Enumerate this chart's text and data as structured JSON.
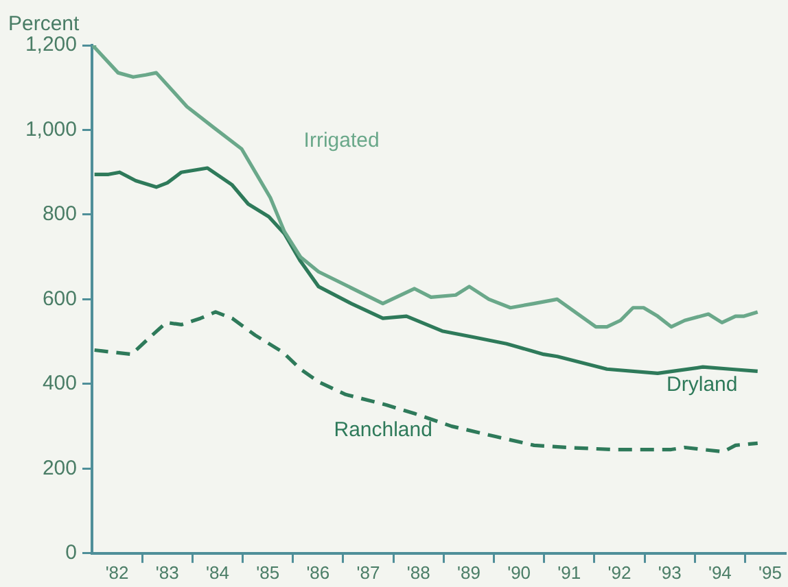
{
  "chart_data": {
    "type": "line",
    "ylabel": "Percent",
    "xlim": [
      1981.5,
      1995.3
    ],
    "xticks": [
      {
        "value": 1982,
        "label": "'82"
      },
      {
        "value": 1982.5,
        "label": null
      },
      {
        "value": 1983,
        "label": "'83"
      },
      {
        "value": 1983.5,
        "label": null
      },
      {
        "value": 1984,
        "label": "'84"
      },
      {
        "value": 1984.5,
        "label": null
      },
      {
        "value": 1985,
        "label": "'85"
      },
      {
        "value": 1985.5,
        "label": null
      },
      {
        "value": 1986,
        "label": "'86"
      },
      {
        "value": 1986.5,
        "label": null
      },
      {
        "value": 1987,
        "label": "'87"
      },
      {
        "value": 1987.5,
        "label": null
      },
      {
        "value": 1988,
        "label": "'88"
      },
      {
        "value": 1988.5,
        "label": null
      },
      {
        "value": 1989,
        "label": "'89"
      },
      {
        "value": 1989.5,
        "label": null
      },
      {
        "value": 1990,
        "label": "'90"
      },
      {
        "value": 1990.5,
        "label": null
      },
      {
        "value": 1991,
        "label": "'91"
      },
      {
        "value": 1991.5,
        "label": null
      },
      {
        "value": 1992,
        "label": "'92"
      },
      {
        "value": 1992.5,
        "label": null
      },
      {
        "value": 1993,
        "label": "'93"
      },
      {
        "value": 1993.5,
        "label": null
      },
      {
        "value": 1994,
        "label": "'94"
      },
      {
        "value": 1994.5,
        "label": null
      },
      {
        "value": 1995,
        "label": "'95"
      }
    ],
    "ylim": [
      0,
      1200
    ],
    "yticks": [
      0,
      200,
      400,
      600,
      800,
      {
        "value": 1000,
        "label": "1,000"
      },
      {
        "value": 1200,
        "label": "1,200"
      }
    ],
    "grid": false,
    "legend": false,
    "marker": "none",
    "series": [
      {
        "name": "Irrigated",
        "color": "#6aa88a",
        "line_style": "solid",
        "x": [
          1981.53,
          1981.55,
          1982.02,
          1982.32,
          1982.57,
          1982.78,
          1983.39,
          1983.93,
          1984.48,
          1985.05,
          1985.33,
          1985.65,
          1986.01,
          1987.29,
          1987.92,
          1988.25,
          1988.74,
          1989.01,
          1989.4,
          1989.83,
          1990.3,
          1990.76,
          1991.53,
          1991.75,
          1992.02,
          1992.27,
          1992.48,
          1992.76,
          1993.03,
          1993.3,
          1993.77,
          1994.04,
          1994.31,
          1994.48,
          1994.75
        ],
        "values": [
          1200,
          1195,
          1135,
          1125,
          1130,
          1135,
          1055,
          1005,
          955,
          840,
          760,
          700,
          665,
          590,
          625,
          605,
          610,
          630,
          600,
          580,
          590,
          600,
          535,
          535,
          550,
          580,
          580,
          560,
          535,
          550,
          565,
          545,
          560,
          560,
          570
        ]
      },
      {
        "name": "Dryland",
        "color": "#2e7a5a",
        "line_style": "solid",
        "x": [
          1981.55,
          1981.83,
          1982.05,
          1982.37,
          1982.78,
          1983.0,
          1983.28,
          1983.8,
          1984.29,
          1984.61,
          1985.02,
          1985.33,
          1985.65,
          1986.01,
          1986.66,
          1987.29,
          1987.76,
          1988.47,
          1989.12,
          1989.75,
          1990.49,
          1990.76,
          1991.75,
          1992.76,
          1993.66,
          1994.2,
          1994.75
        ],
        "values": [
          895,
          895,
          900,
          880,
          865,
          875,
          900,
          910,
          870,
          825,
          795,
          755,
          690,
          630,
          590,
          555,
          560,
          525,
          510,
          495,
          470,
          465,
          435,
          425,
          440,
          435,
          430
        ]
      },
      {
        "name": "Ranchland",
        "color": "#2e7a5a",
        "line_style": "dashed",
        "x": [
          1981.55,
          1981.91,
          1982.29,
          1982.65,
          1982.98,
          1983.28,
          1983.66,
          1983.96,
          1984.29,
          1984.75,
          1985.3,
          1985.65,
          1986.01,
          1986.55,
          1987.37,
          1987.92,
          1988.66,
          1989.56,
          1990.3,
          1990.93,
          1991.86,
          1992.4,
          1993.03,
          1993.3,
          1993.66,
          1994.07,
          1994.31,
          1994.75
        ],
        "values": [
          480,
          475,
          470,
          510,
          545,
          540,
          555,
          570,
          555,
          515,
          475,
          435,
          405,
          375,
          350,
          330,
          300,
          275,
          255,
          250,
          245,
          245,
          245,
          250,
          245,
          240,
          255,
          260
        ]
      }
    ]
  }
}
